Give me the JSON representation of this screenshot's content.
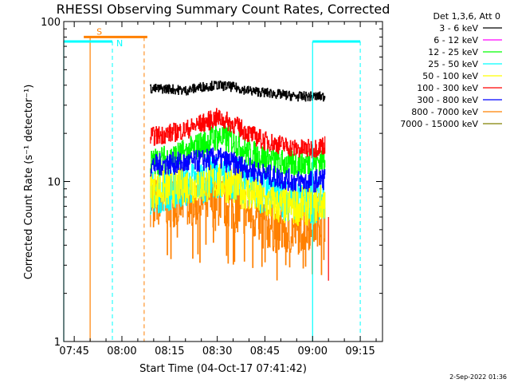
{
  "chart_data": {
    "type": "line",
    "title": "RHESSI Observing Summary Count Rates, Corrected",
    "xlabel": "Start Time (04-Oct-17 07:41:42)",
    "ylabel": "Corrected Count Rate (s⁻¹ detector⁻¹)",
    "y_scale": "log",
    "ylim": [
      1,
      100
    ],
    "xlim": [
      "07:41:42",
      "09:22:00"
    ],
    "x_ticks": [
      "07:45",
      "08:00",
      "08:15",
      "08:30",
      "08:45",
      "09:00",
      "09:15"
    ],
    "y_ticks": [
      "1",
      "10",
      "100"
    ],
    "legend_header": "Det 1,3,6, Att 0",
    "legend_position": "right",
    "data_start": "08:09",
    "data_end": "09:05",
    "series": [
      {
        "name": "3 - 6 keV",
        "color": "#000000",
        "x": [
          "08:09",
          "08:15",
          "08:20",
          "08:25",
          "08:30",
          "08:35",
          "08:40",
          "08:45",
          "08:50",
          "08:55",
          "09:00",
          "09:04"
        ],
        "values": [
          38,
          38,
          37,
          39,
          40,
          39,
          37,
          36,
          35,
          34,
          34,
          34
        ]
      },
      {
        "name": "6 - 12 keV",
        "color": "#ff00ff",
        "x": [],
        "values": []
      },
      {
        "name": "12 - 25 keV",
        "color": "#00ff00",
        "x": [
          "08:09",
          "08:15",
          "08:20",
          "08:25",
          "08:30",
          "08:35",
          "08:40",
          "08:45",
          "08:50",
          "08:55",
          "09:00",
          "09:04"
        ],
        "values": [
          13,
          14,
          15,
          17,
          19,
          18,
          15,
          14,
          13,
          13,
          13,
          14
        ]
      },
      {
        "name": "25 - 50 keV",
        "color": "#00ffff",
        "x": [
          "08:09",
          "08:15",
          "08:20",
          "08:25",
          "08:30",
          "08:35",
          "08:40",
          "08:45",
          "08:50",
          "08:55",
          "09:00",
          "09:04"
        ],
        "values": [
          8.5,
          9,
          9.5,
          10,
          11,
          10.5,
          9.5,
          8.5,
          8,
          7.5,
          7.5,
          8
        ]
      },
      {
        "name": "50 - 100 keV",
        "color": "#ffff00",
        "x": [
          "08:09",
          "08:15",
          "08:20",
          "08:25",
          "08:30",
          "08:35",
          "08:40",
          "08:45",
          "08:50",
          "08:55",
          "09:00",
          "09:04"
        ],
        "values": [
          9,
          9,
          9.5,
          9.5,
          10,
          9.5,
          8.5,
          7.5,
          7,
          7,
          7,
          7.5
        ]
      },
      {
        "name": "100 - 300 keV",
        "color": "#ff0000",
        "x": [
          "08:09",
          "08:15",
          "08:20",
          "08:25",
          "08:30",
          "08:35",
          "08:40",
          "08:45",
          "08:50",
          "08:55",
          "09:00",
          "09:04"
        ],
        "values": [
          19,
          20,
          21,
          23,
          25,
          23,
          20,
          18,
          17,
          16,
          16,
          17
        ]
      },
      {
        "name": "300 - 800 keV",
        "color": "#0000ff",
        "x": [
          "08:09",
          "08:15",
          "08:20",
          "08:25",
          "08:30",
          "08:35",
          "08:40",
          "08:45",
          "08:50",
          "08:55",
          "09:00",
          "09:04"
        ],
        "values": [
          12.5,
          13,
          13,
          13.5,
          14,
          13,
          12,
          11,
          10.5,
          10,
          10,
          10.5
        ]
      },
      {
        "name": "800 - 7000 keV",
        "color": "#ff8000",
        "x": [
          "08:09",
          "08:15",
          "08:20",
          "08:25",
          "08:30",
          "08:35",
          "08:40",
          "08:45",
          "08:50",
          "08:55",
          "09:00",
          "09:04"
        ],
        "values": [
          7.5,
          7.5,
          7.5,
          7.5,
          7.5,
          7,
          6.5,
          5.5,
          5,
          5,
          5.5,
          6
        ]
      },
      {
        "name": "7000 - 15000 keV",
        "color": "#808000",
        "x": [],
        "values": []
      }
    ],
    "annotations": [
      {
        "label": "S",
        "color": "#ff8000",
        "bar_start": "07:48",
        "bar_end": "08:08",
        "level": 80,
        "start_line": "07:50",
        "end_line": "08:07"
      },
      {
        "label": "N",
        "color": "#00ffff",
        "bar_start": "07:41:42",
        "bar_end": "07:57",
        "level": 75,
        "start_line": "07:57",
        "end_line": "07:57"
      },
      {
        "label": "",
        "color": "#00ffff",
        "bar_start": "09:00",
        "bar_end": "09:15",
        "level": 75,
        "start_line": "09:00",
        "end_line": "09:15"
      }
    ],
    "timestamp": "2-Sep-2022 01:36"
  }
}
